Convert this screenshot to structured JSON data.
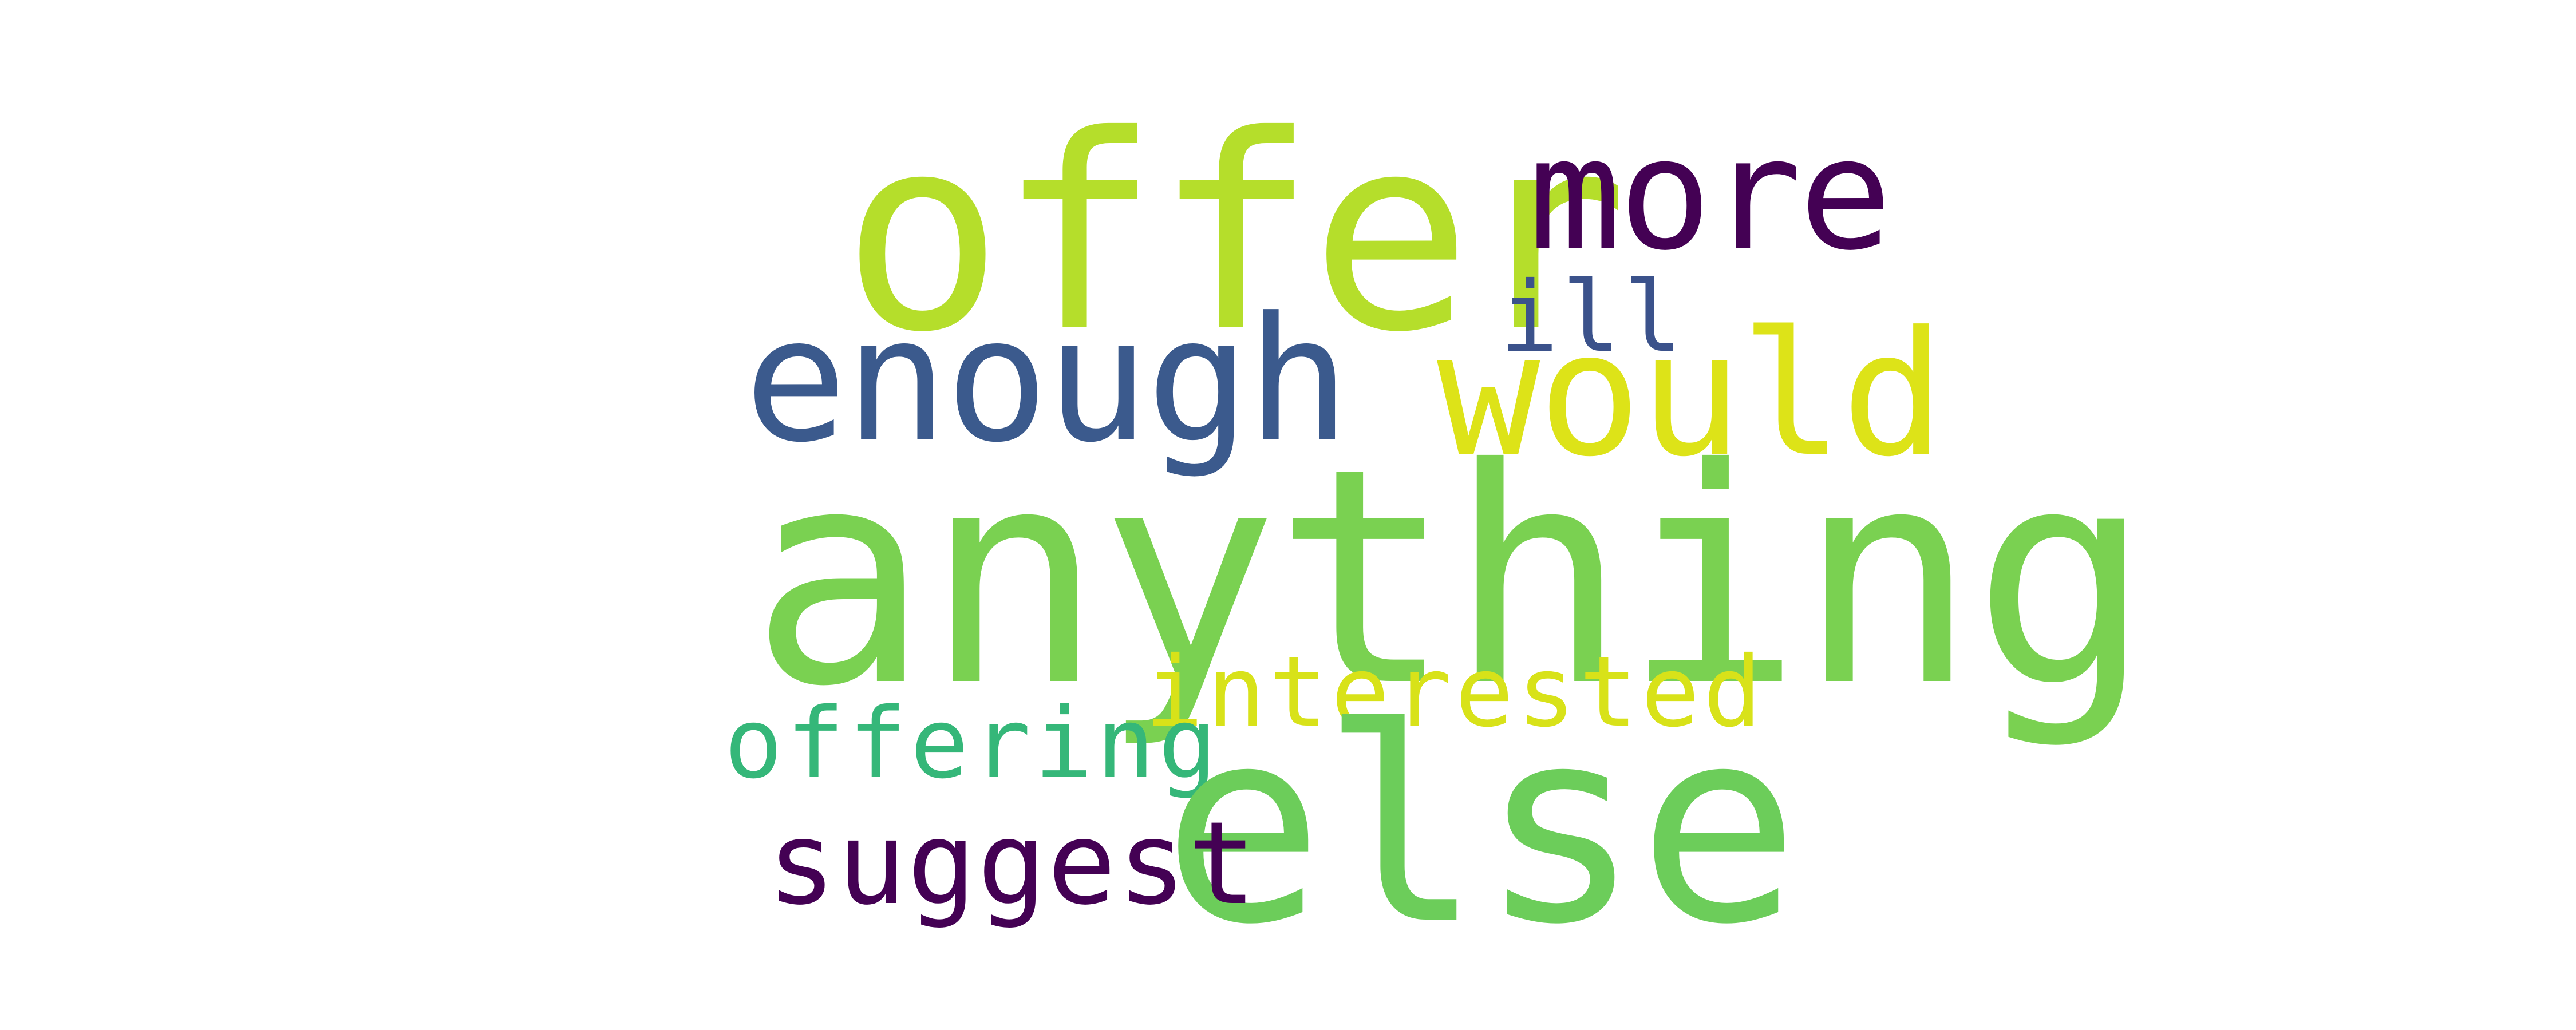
{
  "words": [
    {
      "id": "offer",
      "text": "offer",
      "color": "#b5de2b"
    },
    {
      "id": "more",
      "text": "more",
      "color": "#440154"
    },
    {
      "id": "enough",
      "text": "enough",
      "color": "#3b5a8d"
    },
    {
      "id": "ill",
      "text": "ill",
      "color": "#3b528b"
    },
    {
      "id": "would",
      "text": "would",
      "color": "#dde318"
    },
    {
      "id": "anything",
      "text": "anything",
      "color": "#7ad151"
    },
    {
      "id": "interested",
      "text": "interested",
      "color": "#d8e219"
    },
    {
      "id": "offering",
      "text": "offering",
      "color": "#35b779"
    },
    {
      "id": "else",
      "text": "else",
      "color": "#6ccd5a"
    },
    {
      "id": "suggest",
      "text": "suggest",
      "color": "#440154"
    }
  ]
}
